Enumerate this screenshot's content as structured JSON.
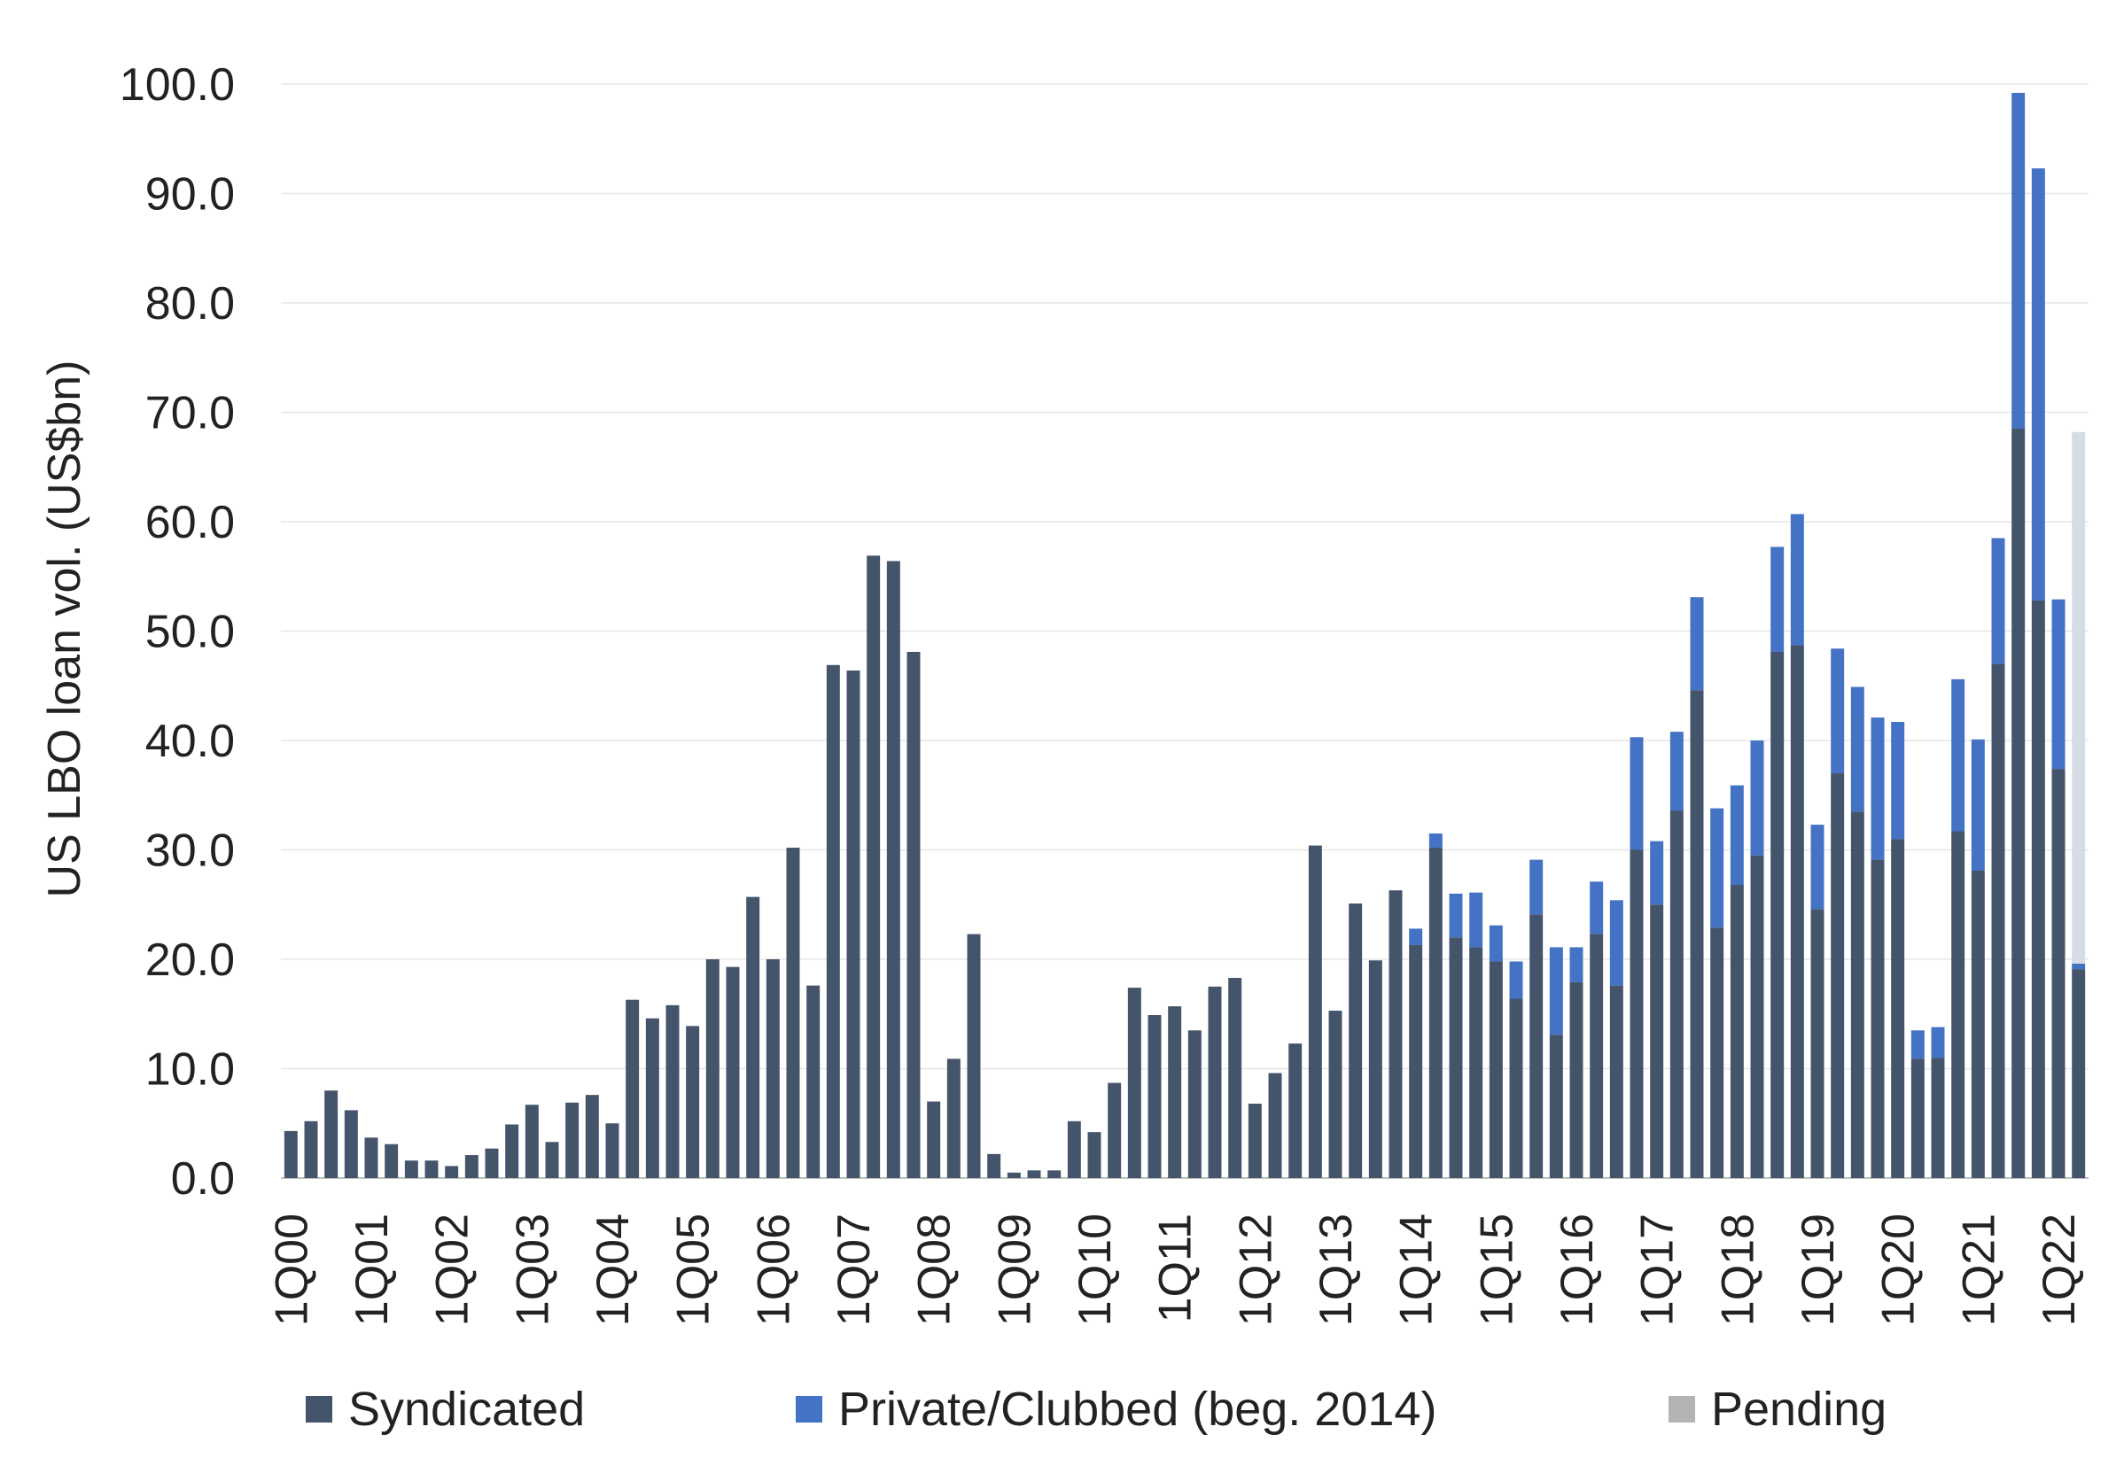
{
  "chart_data": {
    "type": "bar",
    "stacked": true,
    "title": "",
    "xlabel": "",
    "ylabel": "US LBO loan vol. (US$bn)",
    "ylim": [
      0,
      100
    ],
    "yticks": [
      "0.0",
      "10.0",
      "20.0",
      "30.0",
      "40.0",
      "50.0",
      "60.0",
      "70.0",
      "80.0",
      "90.0",
      "100.0"
    ],
    "grid": true,
    "legend_position": "bottom",
    "categories": [
      "1Q00",
      "2Q00",
      "3Q00",
      "4Q00",
      "1Q01",
      "2Q01",
      "3Q01",
      "4Q01",
      "1Q02",
      "2Q02",
      "3Q02",
      "4Q02",
      "1Q03",
      "2Q03",
      "3Q03",
      "4Q03",
      "1Q04",
      "2Q04",
      "3Q04",
      "4Q04",
      "1Q05",
      "2Q05",
      "3Q05",
      "4Q05",
      "1Q06",
      "2Q06",
      "3Q06",
      "4Q06",
      "1Q07",
      "2Q07",
      "3Q07",
      "4Q07",
      "1Q08",
      "2Q08",
      "3Q08",
      "4Q08",
      "1Q09",
      "2Q09",
      "3Q09",
      "4Q09",
      "1Q10",
      "2Q10",
      "3Q10",
      "4Q10",
      "1Q11",
      "2Q11",
      "3Q11",
      "4Q11",
      "1Q12",
      "2Q12",
      "3Q12",
      "4Q12",
      "1Q13",
      "2Q13",
      "3Q13",
      "4Q13",
      "1Q14",
      "2Q14",
      "3Q14",
      "4Q14",
      "1Q15",
      "2Q15",
      "3Q15",
      "4Q15",
      "1Q16",
      "2Q16",
      "3Q16",
      "4Q16",
      "1Q17",
      "2Q17",
      "3Q17",
      "4Q17",
      "1Q18",
      "2Q18",
      "3Q18",
      "4Q18",
      "1Q19",
      "2Q19",
      "3Q19",
      "4Q19",
      "1Q20",
      "2Q20",
      "3Q20",
      "4Q20",
      "1Q21",
      "2Q21",
      "3Q21",
      "4Q21",
      "1Q22",
      "2Q22"
    ],
    "tick_labels": [
      "1Q00",
      "1Q01",
      "1Q02",
      "1Q03",
      "1Q04",
      "1Q05",
      "1Q06",
      "1Q07",
      "1Q08",
      "1Q09",
      "1Q10",
      "1Q11",
      "1Q12",
      "1Q13",
      "1Q14",
      "1Q15",
      "1Q16",
      "1Q17",
      "1Q18",
      "1Q19",
      "1Q20",
      "1Q21",
      "1Q22"
    ],
    "series": [
      {
        "name": "Syndicated",
        "color": "#44546a",
        "values": [
          4.3,
          5.2,
          8.0,
          6.2,
          3.7,
          3.1,
          1.6,
          1.6,
          1.1,
          2.1,
          2.7,
          4.9,
          6.7,
          3.3,
          6.9,
          7.6,
          5.0,
          16.3,
          14.6,
          15.8,
          13.9,
          20.0,
          19.3,
          25.7,
          20.0,
          30.2,
          17.6,
          46.9,
          46.4,
          56.9,
          56.4,
          48.1,
          7.0,
          10.9,
          22.3,
          2.2,
          0.5,
          0.7,
          0.7,
          5.2,
          4.2,
          8.7,
          17.4,
          14.9,
          15.7,
          13.5,
          17.5,
          18.3,
          6.8,
          9.6,
          12.3,
          30.4,
          15.3,
          25.1,
          19.9,
          26.3,
          21.3,
          30.2,
          22.0,
          21.1,
          19.8,
          16.4,
          24.1,
          13.1,
          17.9,
          22.3,
          17.6,
          30.0,
          25.0,
          33.6,
          44.6,
          22.9,
          26.8,
          29.5,
          48.1,
          48.7,
          24.6,
          37.0,
          33.5,
          29.1,
          31.0,
          10.9,
          11.0,
          31.7,
          28.1,
          47.0,
          68.5,
          52.8,
          37.4,
          19.1
        ]
      },
      {
        "name": "Private/Clubbed (beg. 2014)",
        "color": "#4472c4",
        "values": [
          0,
          0,
          0,
          0,
          0,
          0,
          0,
          0,
          0,
          0,
          0,
          0,
          0,
          0,
          0,
          0,
          0,
          0,
          0,
          0,
          0,
          0,
          0,
          0,
          0,
          0,
          0,
          0,
          0,
          0,
          0,
          0,
          0,
          0,
          0,
          0,
          0,
          0,
          0,
          0,
          0,
          0,
          0,
          0,
          0,
          0,
          0,
          0,
          0,
          0,
          0,
          0,
          0,
          0,
          0,
          0,
          1.5,
          1.3,
          4.0,
          5.0,
          3.3,
          3.4,
          5.0,
          8.0,
          3.2,
          4.8,
          7.8,
          10.3,
          5.8,
          7.2,
          8.5,
          10.9,
          9.1,
          10.5,
          9.6,
          12.0,
          7.7,
          11.4,
          11.4,
          13.0,
          10.7,
          2.6,
          2.8,
          13.9,
          12.0,
          11.5,
          30.7,
          39.5,
          15.5,
          0.5
        ]
      },
      {
        "name": "Pending",
        "color": "#b4b4b4",
        "bar_color": "#d6dce5",
        "values": [
          0,
          0,
          0,
          0,
          0,
          0,
          0,
          0,
          0,
          0,
          0,
          0,
          0,
          0,
          0,
          0,
          0,
          0,
          0,
          0,
          0,
          0,
          0,
          0,
          0,
          0,
          0,
          0,
          0,
          0,
          0,
          0,
          0,
          0,
          0,
          0,
          0,
          0,
          0,
          0,
          0,
          0,
          0,
          0,
          0,
          0,
          0,
          0,
          0,
          0,
          0,
          0,
          0,
          0,
          0,
          0,
          0,
          0,
          0,
          0,
          0,
          0,
          0,
          0,
          0,
          0,
          0,
          0,
          0,
          0,
          0,
          0,
          0,
          0,
          0,
          0,
          0,
          0,
          0,
          0,
          0,
          0,
          0,
          0,
          0,
          0,
          0,
          0,
          0,
          48.6
        ]
      }
    ]
  }
}
